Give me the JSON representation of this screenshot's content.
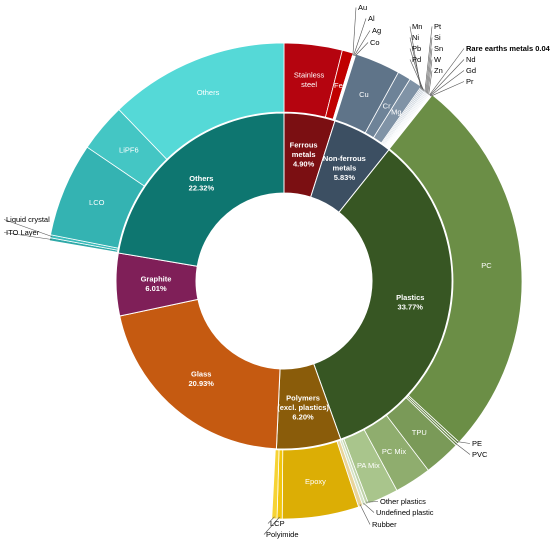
{
  "chart_data": {
    "type": "donut",
    "title": "",
    "inner_ring": [
      {
        "name": "Ferrous metals",
        "value": 4.9,
        "label": "Ferrous\nmetals\n4.90%",
        "color": "#7b0f12"
      },
      {
        "name": "Non-ferrous metals",
        "value": 5.83,
        "label": "Non-ferrous\nmetals\n5.83%",
        "color": "#3c4f62"
      },
      {
        "name": "Plastics",
        "value": 33.77,
        "label": "Plastics\n33.77%",
        "color": "#375623"
      },
      {
        "name": "Polymers (excl. plastics)",
        "value": 6.2,
        "label": "Polymers\n(excl. plastics)\n6.20%",
        "color": "#8a5c0a"
      },
      {
        "name": "Glass",
        "value": 20.93,
        "label": "Glass\n20.93%",
        "color": "#c55a11"
      },
      {
        "name": "Graphite",
        "value": 6.01,
        "label": "Graphite\n6.01%",
        "color": "#7f1f58"
      },
      {
        "name": "Others",
        "value": 22.32,
        "label": "Others\n22.32%",
        "color": "#0e7670"
      }
    ],
    "outer_ring": [
      {
        "name": "Stainless steel",
        "value": 3.95,
        "parent": "Ferrous metals",
        "color": "#b5040f",
        "label": "Stainless\nsteel",
        "label_inside": true
      },
      {
        "name": "Fe",
        "value": 0.75,
        "parent": "Ferrous metals",
        "color": "#c00000",
        "label": "Fe",
        "label_inside": true
      },
      {
        "name": "Au",
        "value": 0.05,
        "parent": "Ferrous metals",
        "color": "#e02020",
        "label": "Au"
      },
      {
        "name": "Al",
        "value": 0.05,
        "parent": "Ferrous metals",
        "color": "#e04040",
        "label": "Al"
      },
      {
        "name": "Ag",
        "value": 0.05,
        "parent": "Ferrous metals",
        "color": "#e06060",
        "label": "Ag"
      },
      {
        "name": "Co",
        "value": 0.05,
        "parent": "Ferrous metals",
        "color": "#e08080",
        "label": "Co"
      },
      {
        "name": "Cu",
        "value": 3.1,
        "parent": "Non-ferrous metals",
        "color": "#5f7489",
        "label": "Cu",
        "label_inside": true
      },
      {
        "name": "Cr",
        "value": 0.9,
        "parent": "Non-ferrous metals",
        "color": "#6e8398",
        "label": "Cr",
        "label_inside": true
      },
      {
        "name": "Mg",
        "value": 0.9,
        "parent": "Non-ferrous metals",
        "color": "#8093a6",
        "label": "Mg",
        "label_inside": true
      },
      {
        "name": "Mn",
        "value": 0.09,
        "parent": "Non-ferrous metals",
        "color": "#90a2b4",
        "label": "Mn"
      },
      {
        "name": "Ni",
        "value": 0.09,
        "parent": "Non-ferrous metals",
        "color": "#9aabbc",
        "label": "Ni"
      },
      {
        "name": "Pb",
        "value": 0.09,
        "parent": "Non-ferrous metals",
        "color": "#a4b4c3",
        "label": "Pb"
      },
      {
        "name": "Pd",
        "value": 0.09,
        "parent": "Non-ferrous metals",
        "color": "#aebdca",
        "label": "Pd"
      },
      {
        "name": "Pt",
        "value": 0.08,
        "parent": "Non-ferrous metals",
        "color": "#b8c5d1",
        "label": "Pt"
      },
      {
        "name": "Si",
        "value": 0.08,
        "parent": "Non-ferrous metals",
        "color": "#c2cdd8",
        "label": "Si"
      },
      {
        "name": "Sn",
        "value": 0.08,
        "parent": "Non-ferrous metals",
        "color": "#ccd5de",
        "label": "Sn"
      },
      {
        "name": "W",
        "value": 0.08,
        "parent": "Non-ferrous metals",
        "color": "#d6dee5",
        "label": "W"
      },
      {
        "name": "Zn",
        "value": 0.08,
        "parent": "Non-ferrous metals",
        "color": "#dfe5eb",
        "label": "Zn"
      },
      {
        "name": "Rare earths metals",
        "value": 0.04,
        "parent": "Non-ferrous metals",
        "color": "#e5eaef",
        "label": "Rare earths metals 0.04%"
      },
      {
        "name": "Nd",
        "value": 0.04,
        "parent": "Non-ferrous metals",
        "color": "#e8edf1",
        "label": "Nd"
      },
      {
        "name": "Gd",
        "value": 0.04,
        "parent": "Non-ferrous metals",
        "color": "#ebeff3",
        "label": "Gd"
      },
      {
        "name": "Pr",
        "value": 0.05,
        "parent": "Non-ferrous metals",
        "color": "#eef2f5",
        "label": "Pr"
      },
      {
        "name": "PC",
        "value": 26.17,
        "parent": "Plastics",
        "color": "#6b8e46",
        "label": "PC",
        "label_inside": true
      },
      {
        "name": "PE",
        "value": 0.15,
        "parent": "Plastics",
        "color": "#5e7e3c",
        "label": "PE"
      },
      {
        "name": "PVC",
        "value": 0.15,
        "parent": "Plastics",
        "color": "#688848",
        "label": "PVC"
      },
      {
        "name": "TPU",
        "value": 2.5,
        "parent": "Plastics",
        "color": "#7a9a58",
        "label": "TPU",
        "label_inside": true
      },
      {
        "name": "PC Mix",
        "value": 2.5,
        "parent": "Plastics",
        "color": "#8fad6e",
        "label": "PC Mix",
        "label_inside": true
      },
      {
        "name": "PA Mix",
        "value": 2.1,
        "parent": "Plastics",
        "color": "#a9c58c",
        "label": "PA Mix",
        "label_inside": true
      },
      {
        "name": "Other plastics",
        "value": 0.2,
        "parent": "Plastics",
        "color": "#c0d4aa",
        "label": "Other plastics"
      },
      {
        "name": "Undefined plastic",
        "value": 0.2,
        "parent": "Plastics",
        "color": "#d5e3c6",
        "label": "Undefined plastic"
      },
      {
        "name": "Rubber",
        "value": 0.3,
        "parent": "Polymers (excl. plastics)",
        "color": "#e8d49a",
        "label": "Rubber"
      },
      {
        "name": "Epoxy",
        "value": 5.2,
        "parent": "Polymers (excl. plastics)",
        "color": "#dcae05",
        "label": "Epoxy",
        "label_inside": true
      },
      {
        "name": "Polyimide",
        "value": 0.35,
        "parent": "Polymers (excl. plastics)",
        "color": "#f2c60c",
        "label": "Polyimide"
      },
      {
        "name": "LCP",
        "value": 0.35,
        "parent": "Polymers (excl. plastics)",
        "color": "#f6d335",
        "label": "LCP"
      },
      {
        "name": "Glass (outer)",
        "value": 20.93,
        "parent": "Glass",
        "color": "#ffffff",
        "label": ""
      },
      {
        "name": "Graphite (outer)",
        "value": 6.01,
        "parent": "Graphite",
        "color": "#ffffff",
        "label": ""
      },
      {
        "name": "ITO Layer",
        "value": 0.2,
        "parent": "Others",
        "color": "#2fa9a8",
        "label": "ITO Layer"
      },
      {
        "name": "Liquid crystal",
        "value": 0.2,
        "parent": "Others",
        "color": "#3bbcbb",
        "label": "Liquid crystal"
      },
      {
        "name": "LCO",
        "value": 6.4,
        "parent": "Others",
        "color": "#34b3b2",
        "label": "LCO",
        "label_inside": true
      },
      {
        "name": "LiPF6",
        "value": 3.3,
        "parent": "Others",
        "color": "#44c6c4",
        "label": "LiPF6",
        "label_inside": true
      },
      {
        "name": "Others",
        "value": 12.22,
        "parent": "Others",
        "color": "#55d9d7",
        "label": "Others",
        "label_inside": true
      }
    ]
  }
}
